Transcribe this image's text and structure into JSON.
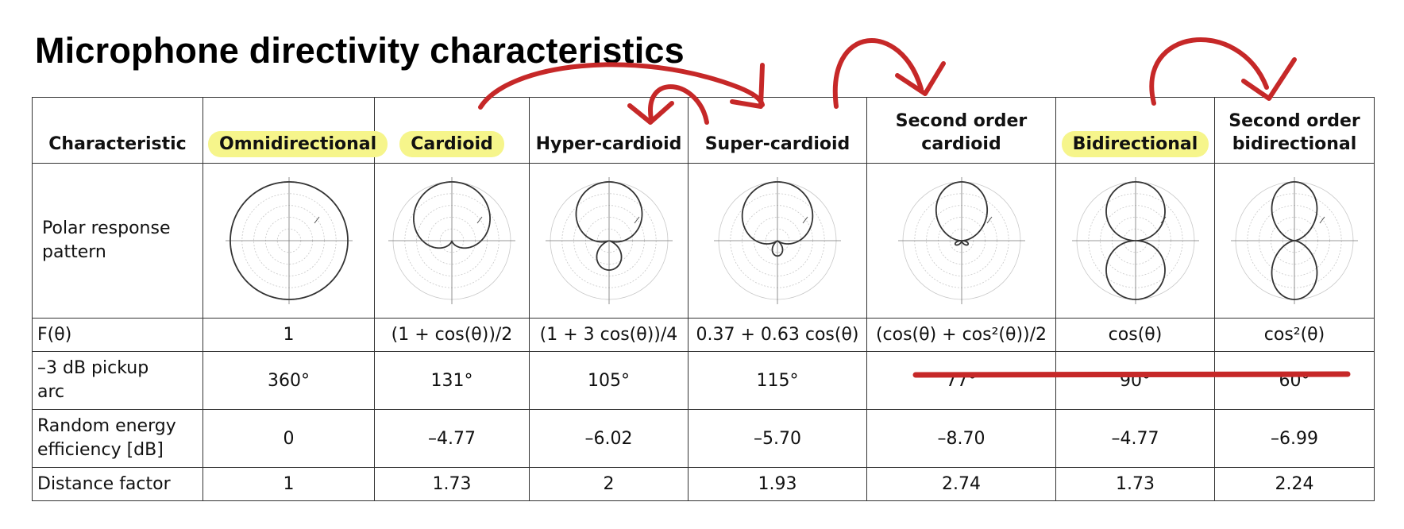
{
  "title": "Microphone directivity characteristics",
  "table": {
    "header": {
      "characteristic": "Characteristic",
      "omnidirectional": "Omnidirectional",
      "cardioid": "Cardioid",
      "hypercardioid": "Hyper-cardioid",
      "supercardioid": "Super-cardioid",
      "second_cardioid_1": "Second order",
      "second_cardioid_2": "cardioid",
      "bidirectional": "Bidirectional",
      "second_bidirectional_1": "Second order",
      "second_bidirectional_2": "bidirectional"
    },
    "polar": {
      "label_1": "Polar response",
      "label_2": "pattern"
    },
    "f_theta": {
      "label": "F(θ)",
      "values": [
        "1",
        "(1 + cos(θ))/2",
        "(1 + 3 cos(θ))/4",
        "0.37 + 0.63 cos(θ)",
        "(cos(θ) + cos²(θ))/2",
        "cos(θ)",
        "cos²(θ)"
      ]
    },
    "pickup_arc": {
      "label_1": "–3 dB pickup",
      "label_2": "arc",
      "values": [
        "360°",
        "131°",
        "105°",
        "115°",
        "77°",
        "90°",
        "60°"
      ]
    },
    "random_energy": {
      "label_1": "Random energy",
      "label_2": "efficiency [dB]",
      "values": [
        "0",
        "–4.77",
        "–6.02",
        "–5.70",
        "–8.70",
        "–4.77",
        "–6.99"
      ]
    },
    "distance_factor": {
      "label": "Distance factor",
      "values": [
        "1",
        "1.73",
        "2",
        "1.93",
        "2.74",
        "1.73",
        "2.24"
      ]
    }
  },
  "annotations": {
    "highlight_color": "#f6f58b",
    "ink_color": "#c62828"
  }
}
